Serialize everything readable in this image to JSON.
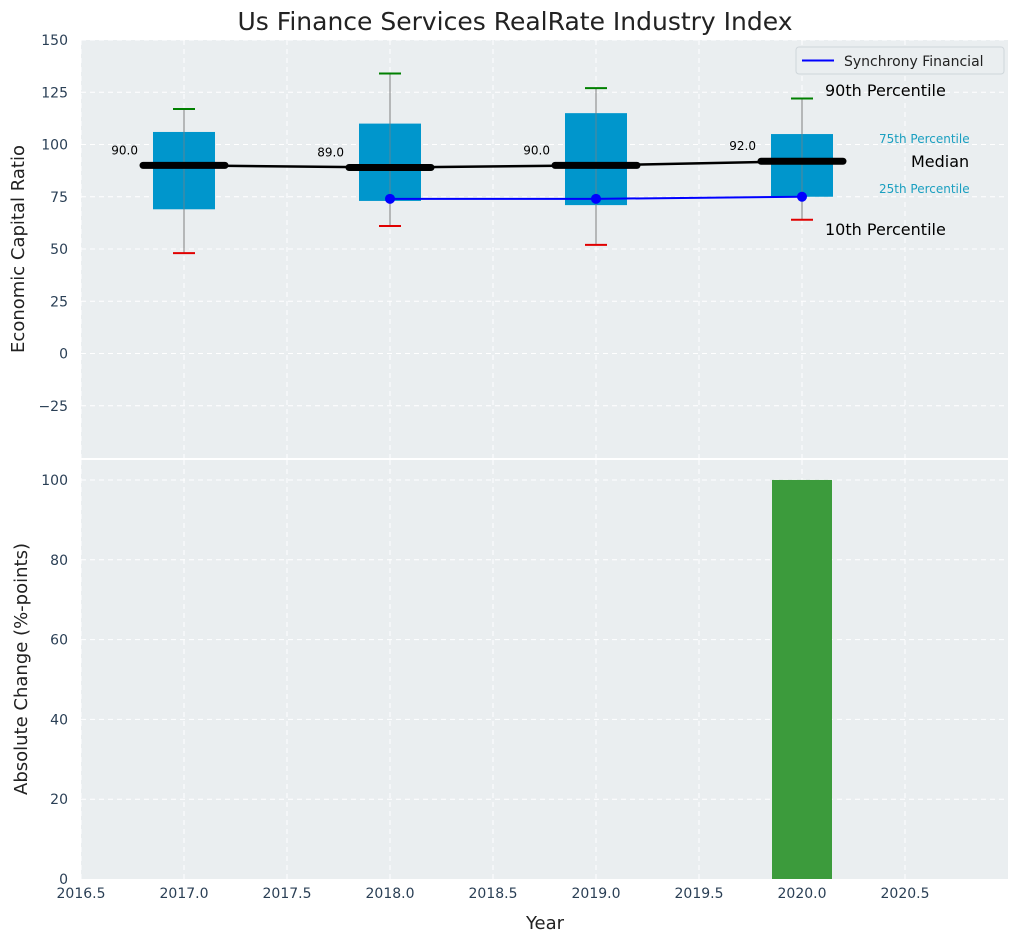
{
  "chart_data": {
    "title": "Us Finance Services RealRate Industry Index",
    "panels": [
      {
        "type": "boxplot",
        "xlabel": "",
        "ylabel": "Economic Capital Ratio",
        "xlim": [
          2016.5,
          2021.0
        ],
        "ylim": [
          -50,
          150
        ],
        "yticks": [
          -25,
          0,
          25,
          50,
          75,
          100,
          125,
          150
        ],
        "ytick_labels": [
          "−25",
          "0",
          "25",
          "50",
          "75",
          "100",
          "125",
          "150"
        ],
        "grid": true,
        "boxes": [
          {
            "x": 2017,
            "p10": 48,
            "p25": 69,
            "median": 90,
            "p75": 106,
            "p90": 117,
            "median_label": "90.0"
          },
          {
            "x": 2018,
            "p10": 61,
            "p25": 73,
            "median": 89,
            "p75": 110,
            "p90": 134,
            "median_label": "89.0"
          },
          {
            "x": 2019,
            "p10": 52,
            "p25": 71,
            "median": 90,
            "p75": 115,
            "p90": 127,
            "median_label": "90.0"
          },
          {
            "x": 2020,
            "p10": 64,
            "p25": 75,
            "median": 92,
            "p75": 105,
            "p90": 122,
            "median_label": "92.0"
          }
        ],
        "median_line": {
          "x": [
            2017,
            2018,
            2019,
            2020
          ],
          "y": [
            90,
            89,
            90,
            92
          ]
        },
        "series": [
          {
            "name": "Synchrony Financial",
            "x": [
              2018,
              2019,
              2020
            ],
            "y": [
              74,
              74,
              75
            ],
            "color": "#0000ff"
          }
        ],
        "legend": {
          "position": "top-right",
          "entries": [
            "Synchrony Financial"
          ]
        },
        "annotations": {
          "p90": "90th Percentile",
          "p75": "75th Percentile",
          "median": "Median",
          "p25": "25th Percentile",
          "p10": "10th Percentile"
        }
      },
      {
        "type": "bar",
        "xlabel": "Year",
        "ylabel": "Absolute Change (%-points)",
        "xlim": [
          2016.5,
          2021.0
        ],
        "ylim": [
          0,
          105
        ],
        "xticks": [
          2016.5,
          2017.0,
          2017.5,
          2018.0,
          2018.5,
          2019.0,
          2019.5,
          2020.0,
          2020.5
        ],
        "xtick_labels": [
          "2016.5",
          "2017.0",
          "2017.5",
          "2018.0",
          "2018.5",
          "2019.0",
          "2019.5",
          "2020.0",
          "2020.5"
        ],
        "yticks": [
          0,
          20,
          40,
          60,
          80,
          100
        ],
        "ytick_labels": [
          "0",
          "20",
          "40",
          "60",
          "80",
          "100"
        ],
        "grid": true,
        "bars": [
          {
            "x": 2020,
            "value": 100,
            "color": "#3c9b3c"
          }
        ]
      }
    ]
  },
  "colors": {
    "axes_bg": "#eaeef0",
    "box": "#0096cc",
    "whisker_top": "#008000",
    "whisker_bottom": "#e00000",
    "median": "#000000",
    "tick_text": "#2a3f55",
    "percentile_label": "#1a9fc0"
  }
}
